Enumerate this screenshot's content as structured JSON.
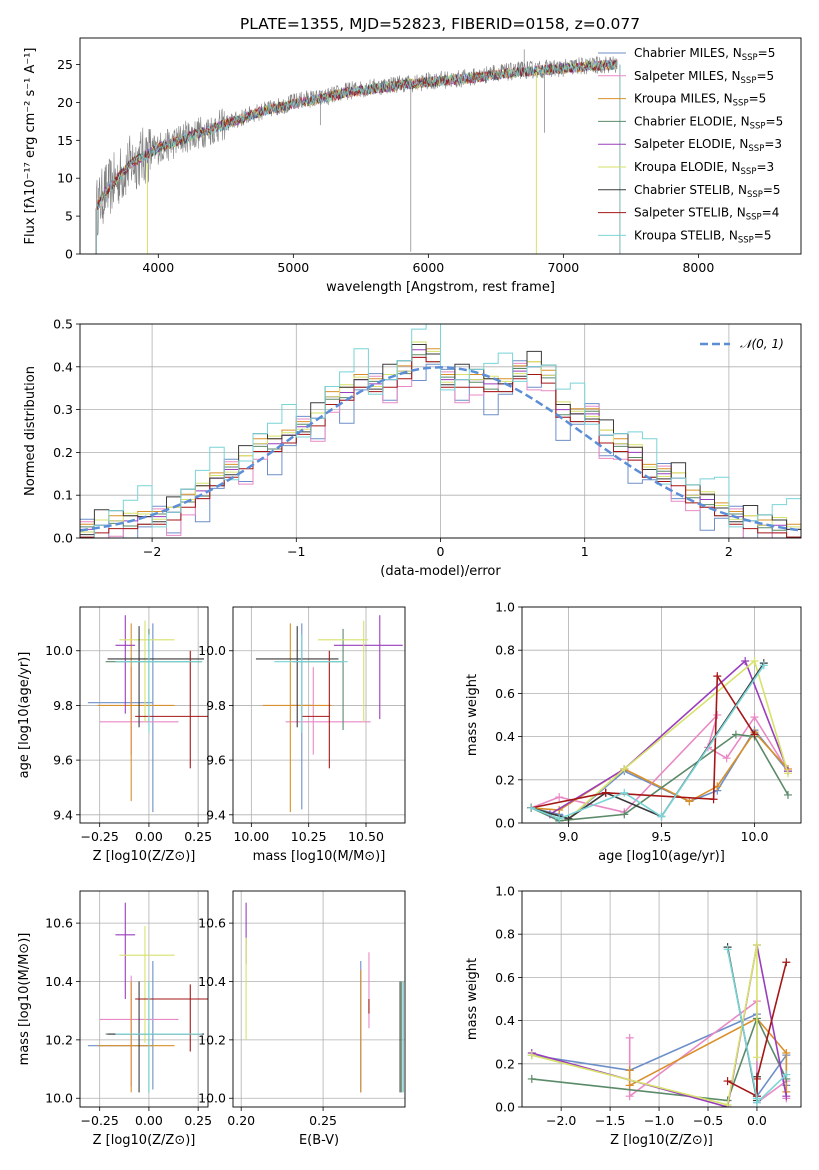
{
  "title": "PLATE=1355, MJD=52823, FIBERID=0158, z=0.077",
  "colors": [
    "#6d8fc9",
    "#e989c5",
    "#d9902a",
    "#5b8a69",
    "#9a3ebd",
    "#d6e26a",
    "#3a3a3a",
    "#a51717",
    "#79d4d6"
  ],
  "chart_data": [
    {
      "id": "spectrum",
      "type": "line",
      "xlabel": "wavelength [Angstrom, rest frame]",
      "ylabel": "Flux [fλ10⁻¹⁷ erg cm⁻² s⁻¹ A⁻¹]",
      "xlim": [
        3420,
        8760
      ],
      "ylim": [
        0,
        28.5
      ],
      "xticks": [
        4000,
        5000,
        6000,
        7000,
        8000
      ],
      "yticks": [
        0,
        5,
        10,
        15,
        20,
        25
      ],
      "observed": {
        "color": "#808080",
        "x": [
          3540,
          3600,
          3700,
          3800,
          3900,
          4000,
          4100,
          4200,
          4300,
          4400,
          4500,
          4600,
          4700,
          4800,
          4900,
          5000,
          5100,
          5200,
          5300,
          5400,
          5500,
          5600,
          5700,
          5800,
          5900,
          6000,
          6100,
          6200,
          6300,
          6400,
          6500,
          6600,
          6700,
          6800,
          6900,
          7000,
          7100,
          7200,
          7300,
          7400
        ],
        "y": [
          6,
          8,
          10,
          12,
          13,
          14,
          14.5,
          15.5,
          16,
          16.5,
          17.2,
          17.8,
          18.5,
          19,
          19.5,
          20,
          20.5,
          20.5,
          21,
          21.5,
          21.8,
          22,
          22.3,
          22.5,
          22.5,
          22.8,
          23,
          23,
          23.3,
          23.5,
          24,
          24,
          24.3,
          24.3,
          24.5,
          24.5,
          24.8,
          24.8,
          25,
          25
        ]
      },
      "model": {
        "x": [
          3540,
          3600,
          3700,
          3800,
          3900,
          4000,
          4200,
          4400,
          4600,
          4800,
          5000,
          5200,
          5400,
          5600,
          5800,
          6000,
          6200,
          6400,
          6600,
          6800,
          7000,
          7200,
          7400
        ],
        "y": [
          6,
          8,
          10,
          12,
          13,
          14,
          15.3,
          16.5,
          17.8,
          19,
          19.8,
          20.5,
          21.3,
          21.8,
          22.3,
          22.7,
          23,
          23.4,
          23.9,
          24.2,
          24.5,
          24.8,
          25
        ]
      },
      "legend": [
        "Chabrier MILES, N_SSP=5",
        "Salpeter MILES, N_SSP=5",
        "Kroupa MILES, N_SSP=5",
        "Chabrier ELODIE, N_SSP=5",
        "Salpeter ELODIE, N_SSP=3",
        "Kroupa ELODIE, N_SSP=3",
        "Chabrier STELIB, N_SSP=5",
        "Salpeter STELIB, N_SSP=4",
        "Kroupa STELIB, N_SSP=5"
      ]
    },
    {
      "id": "residuals",
      "type": "histogram",
      "xlabel": "(data-model)/error",
      "ylabel": "Normed distribution",
      "xlim": [
        -2.5,
        2.5
      ],
      "ylim": [
        0,
        0.5
      ],
      "xticks": [
        -2,
        -1,
        0,
        1,
        2
      ],
      "yticks": [
        0.0,
        0.1,
        0.2,
        0.3,
        0.4,
        0.5
      ],
      "grid": true,
      "bins": [
        -2.5,
        -2.4,
        -2.3,
        -2.2,
        -2.1,
        -2.0,
        -1.9,
        -1.8,
        -1.7,
        -1.6,
        -1.5,
        -1.4,
        -1.3,
        -1.2,
        -1.1,
        -1.0,
        -0.9,
        -0.8,
        -0.7,
        -0.6,
        -0.5,
        -0.4,
        -0.3,
        -0.2,
        -0.1,
        0.0,
        0.1,
        0.2,
        0.3,
        0.4,
        0.5,
        0.6,
        0.7,
        0.8,
        0.9,
        1.0,
        1.1,
        1.2,
        1.3,
        1.4,
        1.5,
        1.6,
        1.7,
        1.8,
        1.9,
        2.0,
        2.1,
        2.2,
        2.3,
        2.4
      ],
      "counts": [
        0.02,
        0.03,
        0.04,
        0.04,
        0.05,
        0.05,
        0.06,
        0.09,
        0.11,
        0.14,
        0.16,
        0.18,
        0.22,
        0.22,
        0.24,
        0.26,
        0.28,
        0.33,
        0.34,
        0.37,
        0.36,
        0.37,
        0.39,
        0.44,
        0.43,
        0.37,
        0.37,
        0.37,
        0.36,
        0.36,
        0.39,
        0.4,
        0.38,
        0.3,
        0.29,
        0.29,
        0.24,
        0.22,
        0.2,
        0.16,
        0.15,
        0.14,
        0.1,
        0.09,
        0.07,
        0.05,
        0.04,
        0.03,
        0.03,
        0.02
      ],
      "legend": [
        "𝒩(0, 1)"
      ]
    },
    {
      "id": "age-vs-Z",
      "type": "errorbar",
      "xlabel": "Z [log10(Z/Z⊙)]",
      "ylabel": "age [log10(age/yr)]",
      "xlim": [
        -0.35,
        0.3
      ],
      "ylim": [
        9.37,
        10.16
      ],
      "xticks": [
        -0.25,
        0.0,
        0.25
      ],
      "yticks": [
        9.4,
        9.6,
        9.8,
        10.0
      ],
      "points": [
        {
          "x": 0.02,
          "xe": [
            0.33,
            0.0
          ],
          "y": 9.81,
          "ye": [
            0.4,
            0.29
          ]
        },
        {
          "x": -0.09,
          "xe": [
            0.16,
            0.24
          ],
          "y": 9.74,
          "ye": [
            0.12,
            0.2
          ]
        },
        {
          "x": -0.09,
          "xe": [
            0.17,
            0.22
          ],
          "y": 9.8,
          "ye": [
            0.35,
            0.3
          ]
        },
        {
          "x": 0.0,
          "xe": [
            0.22,
            0.27
          ],
          "y": 9.96,
          "ye": [
            0.22,
            0.12
          ]
        },
        {
          "x": -0.12,
          "xe": [
            0.05,
            0.05
          ],
          "y": 10.02,
          "ye": [
            0.25,
            0.11
          ]
        },
        {
          "x": -0.02,
          "xe": [
            0.13,
            0.15
          ],
          "y": 10.04,
          "ye": [
            0.3,
            0.07
          ]
        },
        {
          "x": -0.05,
          "xe": [
            0.16,
            0.33
          ],
          "y": 9.97,
          "ye": [
            0.25,
            0.12
          ]
        },
        {
          "x": 0.21,
          "xe": [
            0.28,
            0.13
          ],
          "y": 9.76,
          "ye": [
            0.19,
            0.24
          ]
        },
        {
          "x": 0.0,
          "xe": [
            0.17,
            0.27
          ],
          "y": 9.96,
          "ye": [
            0.26,
            0.1
          ]
        }
      ]
    },
    {
      "id": "age-vs-mass",
      "type": "errorbar",
      "xlabel": "mass [log10(M/M⊙)]",
      "ylabel": "",
      "xlim": [
        9.92,
        10.67
      ],
      "ylim": [
        9.37,
        10.16
      ],
      "xticks": [
        10.0,
        10.25,
        10.5
      ],
      "yticks": [
        9.4,
        9.6,
        9.8,
        10.0
      ],
      "points": [
        {
          "x": 10.22,
          "xe": [
            0.05,
            0.05
          ],
          "y": 9.8,
          "ye": [
            0.38,
            0.3
          ]
        },
        {
          "x": 10.27,
          "xe": [
            0.12,
            0.25
          ],
          "y": 9.74,
          "ye": [
            0.12,
            0.2
          ]
        },
        {
          "x": 10.17,
          "xe": [
            0.12,
            0.18
          ],
          "y": 9.8,
          "ye": [
            0.39,
            0.3
          ]
        },
        {
          "x": 10.4,
          "xe": [
            0.22,
            0.0
          ],
          "y": 9.96,
          "ye": [
            0.25,
            0.12
          ]
        },
        {
          "x": 10.56,
          "xe": [
            0.2,
            0.1
          ],
          "y": 10.02,
          "ye": [
            0.27,
            0.11
          ]
        },
        {
          "x": 10.49,
          "xe": [
            0.2,
            0.02
          ],
          "y": 10.04,
          "ye": [
            0.3,
            0.07
          ]
        },
        {
          "x": 10.2,
          "xe": [
            0.18,
            0.18
          ],
          "y": 9.97,
          "ye": [
            0.25,
            0.12
          ]
        },
        {
          "x": 10.34,
          "xe": [
            0.12,
            0.0
          ],
          "y": 9.76,
          "ye": [
            0.19,
            0.24
          ]
        },
        {
          "x": 10.22,
          "xe": [
            0.12,
            0.2
          ],
          "y": 9.96,
          "ye": [
            0.26,
            0.1
          ]
        }
      ]
    },
    {
      "id": "mass-weight-vs-age",
      "type": "line",
      "xlabel": "age [log10(age/yr)]",
      "ylabel": "mass weight",
      "xlim": [
        8.75,
        10.25
      ],
      "ylim": [
        0,
        1.0
      ],
      "xticks": [
        9.0,
        9.5,
        10.0
      ],
      "yticks": [
        0.0,
        0.2,
        0.4,
        0.6,
        0.8,
        1.0
      ],
      "grid": true,
      "series": [
        {
          "x": [
            8.8,
            8.95,
            9.0,
            9.3,
            9.65,
            9.8,
            10.0,
            10.18
          ],
          "y": [
            0.07,
            0.04,
            0.02,
            0.24,
            0.1,
            0.15,
            0.43,
            0.24
          ]
        },
        {
          "x": [
            8.8,
            8.95,
            9.3,
            9.8,
            9.75,
            9.85,
            10.0,
            10.18
          ],
          "y": [
            0.07,
            0.12,
            0.05,
            0.5,
            0.35,
            0.3,
            0.49,
            0.24
          ]
        },
        {
          "x": [
            8.8,
            8.95,
            9.3,
            9.65,
            9.8,
            10.0,
            10.18
          ],
          "y": [
            0.07,
            0.06,
            0.25,
            0.1,
            0.17,
            0.42,
            0.25
          ]
        },
        {
          "x": [
            8.8,
            8.95,
            9.3,
            9.9,
            10.0,
            10.18
          ],
          "y": [
            0.07,
            0.01,
            0.04,
            0.41,
            0.4,
            0.13
          ]
        },
        {
          "x": [
            8.8,
            8.9,
            9.3,
            9.95,
            10.18
          ],
          "y": [
            0.07,
            0.04,
            0.25,
            0.75,
            0.24
          ]
        },
        {
          "x": [
            8.8,
            9.0,
            9.3,
            10.0,
            10.18
          ],
          "y": [
            0.07,
            0.02,
            0.25,
            0.75,
            0.23
          ]
        },
        {
          "x": [
            8.8,
            9.0,
            9.2,
            9.5,
            10.05
          ],
          "y": [
            0.07,
            0.02,
            0.14,
            0.03,
            0.74
          ]
        },
        {
          "x": [
            8.8,
            9.2,
            9.78,
            9.8,
            10.0
          ],
          "y": [
            0.07,
            0.14,
            0.11,
            0.68,
            0.41
          ]
        },
        {
          "x": [
            8.8,
            8.95,
            9.3,
            9.5,
            10.05
          ],
          "y": [
            0.07,
            0.02,
            0.14,
            0.03,
            0.73
          ]
        }
      ]
    },
    {
      "id": "mass-vs-Z",
      "type": "errorbar",
      "xlabel": "Z [log10(Z/Z⊙)]",
      "ylabel": "mass [log10(M/M⊙)]",
      "xlim": [
        -0.35,
        0.3
      ],
      "ylim": [
        9.97,
        10.71
      ],
      "xticks": [
        -0.25,
        0.0,
        0.25
      ],
      "yticks": [
        10.0,
        10.2,
        10.4,
        10.6
      ],
      "points": [
        {
          "x": 0.02,
          "xe": [
            0.33,
            0.0
          ],
          "y": 10.18,
          "ye": [
            0.15,
            0.29
          ]
        },
        {
          "x": -0.09,
          "xe": [
            0.16,
            0.24
          ],
          "y": 10.27,
          "ye": [
            0.23,
            0.15
          ]
        },
        {
          "x": -0.09,
          "xe": [
            0.17,
            0.22
          ],
          "y": 10.18,
          "ye": [
            0.16,
            0.22
          ]
        },
        {
          "x": 0.0,
          "xe": [
            0.22,
            0.27
          ],
          "y": 10.22,
          "ye": [
            0.2,
            0.18
          ]
        },
        {
          "x": -0.12,
          "xe": [
            0.05,
            0.05
          ],
          "y": 10.56,
          "ye": [
            0.22,
            0.11
          ]
        },
        {
          "x": -0.02,
          "xe": [
            0.13,
            0.15
          ],
          "y": 10.49,
          "ye": [
            0.3,
            0.1
          ]
        },
        {
          "x": -0.05,
          "xe": [
            0.16,
            0.33
          ],
          "y": 10.22,
          "ye": [
            0.2,
            0.18
          ]
        },
        {
          "x": 0.21,
          "xe": [
            0.28,
            0.13
          ],
          "y": 10.34,
          "ye": [
            0.18,
            0.05
          ]
        },
        {
          "x": 0.0,
          "xe": [
            0.17,
            0.27
          ],
          "y": 10.22,
          "ye": [
            0.2,
            0.18
          ]
        }
      ]
    },
    {
      "id": "mass-vs-EBV",
      "type": "errorbar",
      "xlabel": "E(B-V)",
      "ylabel": "",
      "xlim": [
        0.195,
        0.3
      ],
      "ylim": [
        9.97,
        10.71
      ],
      "xticks": [
        0.2,
        0.25
      ],
      "yticks": [
        10.0,
        10.2,
        10.4,
        10.6
      ],
      "points": [
        {
          "x": 0.273,
          "xe": [
            0,
            0
          ],
          "y": 10.22,
          "ye": [
            0.2,
            0.25
          ]
        },
        {
          "x": 0.278,
          "xe": [
            0,
            0
          ],
          "y": 10.34,
          "ye": [
            0.1,
            0.16
          ]
        },
        {
          "x": 0.273,
          "xe": [
            0,
            0
          ],
          "y": 10.27,
          "ye": [
            0.25,
            0.17
          ]
        },
        {
          "x": 0.298,
          "xe": [
            0,
            0
          ],
          "y": 10.22,
          "ye": [
            0.2,
            0.18
          ]
        },
        {
          "x": 0.203,
          "xe": [
            0,
            0
          ],
          "y": 10.56,
          "ye": [
            0.1,
            0.11
          ]
        },
        {
          "x": 0.203,
          "xe": [
            0,
            0
          ],
          "y": 10.42,
          "ye": [
            0.22,
            0.13
          ]
        },
        {
          "x": 0.297,
          "xe": [
            0,
            0
          ],
          "y": 10.22,
          "ye": [
            0.2,
            0.18
          ]
        },
        {
          "x": 0.278,
          "xe": [
            0,
            0
          ],
          "y": 10.34,
          "ye": [
            0.05,
            0.0
          ]
        },
        {
          "x": 0.299,
          "xe": [
            0,
            0
          ],
          "y": 10.22,
          "ye": [
            0.2,
            0.18
          ]
        }
      ]
    },
    {
      "id": "mass-weight-vs-Z",
      "type": "line",
      "xlabel": "Z [log10(Z/Z⊙)]",
      "ylabel": "mass weight",
      "xlim": [
        -2.4,
        0.45
      ],
      "ylim": [
        0,
        1.0
      ],
      "xticks": [
        -2.0,
        -1.5,
        -1.0,
        -0.5,
        0.0
      ],
      "yticks": [
        0.0,
        0.2,
        0.4,
        0.6,
        0.8,
        1.0
      ],
      "grid": true,
      "series": [
        {
          "x": [
            -2.3,
            -1.3,
            0.0,
            0.0,
            0.3,
            0.3
          ],
          "y": [
            0.24,
            0.17,
            0.43,
            0.05,
            0.24,
            0.1
          ]
        },
        {
          "x": [
            -1.3,
            -1.3,
            0.0,
            0.0,
            0.3,
            0.3
          ],
          "y": [
            0.32,
            0.05,
            0.49,
            0.02,
            0.12,
            0.04
          ]
        },
        {
          "x": [
            -1.3,
            -1.3,
            0.0,
            0.3,
            0.3
          ],
          "y": [
            0.17,
            0.1,
            0.41,
            0.25,
            0.07
          ]
        },
        {
          "x": [
            -2.3,
            -0.3,
            0.0,
            0.3
          ],
          "y": [
            0.13,
            0.03,
            0.41,
            0.13
          ]
        },
        {
          "x": [
            -2.3,
            -0.3,
            0.0,
            0.3
          ],
          "y": [
            0.25,
            0.0,
            0.75,
            0.05
          ]
        },
        {
          "x": [
            -2.3,
            -0.3,
            0.0,
            0.0
          ],
          "y": [
            0.24,
            0.01,
            0.75,
            0.23
          ]
        },
        {
          "x": [
            -0.3,
            0.0,
            0.0
          ],
          "y": [
            0.74,
            0.03,
            0.14
          ]
        },
        {
          "x": [
            -0.3,
            0.0,
            0.0,
            0.3
          ],
          "y": [
            0.12,
            0.05,
            0.13,
            0.67
          ]
        },
        {
          "x": [
            -0.3,
            0.0,
            0.0,
            0.3
          ],
          "y": [
            0.73,
            0.04,
            0.02,
            0.15
          ]
        }
      ]
    }
  ]
}
